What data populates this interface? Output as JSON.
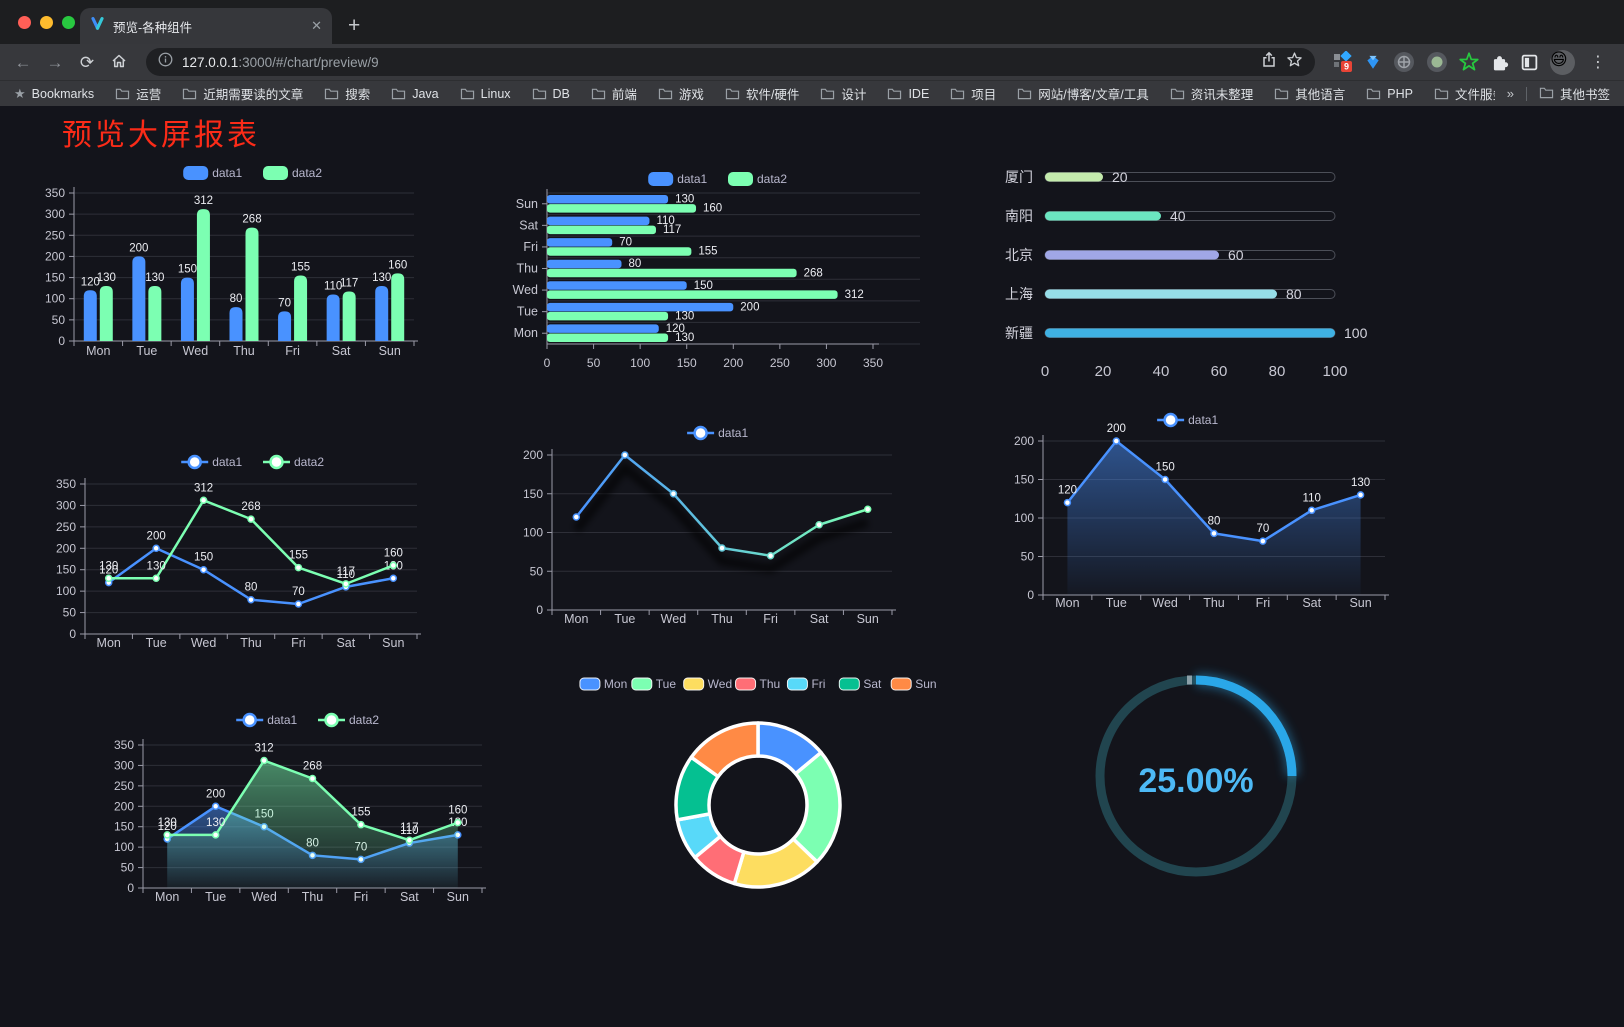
{
  "browser": {
    "tab_title": "预览-各种组件",
    "url_host": "127.0.0.1",
    "url_rest": ":3000/#/chart/preview/9",
    "bookmarks_label": "Bookmarks",
    "bookmarks": [
      "运营",
      "近期需要读的文章",
      "搜索",
      "Java",
      "Linux",
      "DB",
      "前端",
      "游戏",
      "软件/硬件",
      "设计",
      "IDE",
      "项目",
      "网站/博客/文章/工具",
      "资讯未整理",
      "其他语言",
      "PHP",
      "文件服务器"
    ],
    "other_bookmarks": "其他书签",
    "extension_badge": "9",
    "icons": {
      "back": "←",
      "forward": "→",
      "reload": "⟳",
      "newtab": "+",
      "close": "✕",
      "kebab": "⋮",
      "overflow": "»"
    }
  },
  "page": {
    "title": "预览大屏报表",
    "title_color": "#fb2b18"
  },
  "chart_data": [
    {
      "id": "bar-vertical",
      "type": "bar",
      "categories": [
        "Mon",
        "Tue",
        "Wed",
        "Thu",
        "Fri",
        "Sat",
        "Sun"
      ],
      "series": [
        {
          "name": "data1",
          "color": "#4992ff",
          "values": [
            120,
            200,
            150,
            80,
            70,
            110,
            130
          ]
        },
        {
          "name": "data2",
          "color": "#7cffb2",
          "values": [
            130,
            130,
            312,
            268,
            155,
            117,
            160
          ]
        }
      ],
      "ylim": [
        0,
        350
      ],
      "ystep": 50,
      "value_labels": true,
      "legend_position": "top"
    },
    {
      "id": "bar-horizontal",
      "type": "bar-horizontal",
      "categories": [
        "Mon",
        "Tue",
        "Wed",
        "Thu",
        "Fri",
        "Sat",
        "Sun"
      ],
      "series": [
        {
          "name": "data1",
          "color": "#4992ff",
          "values": [
            120,
            200,
            150,
            80,
            70,
            110,
            130
          ]
        },
        {
          "name": "data2",
          "color": "#7cffb2",
          "values": [
            130,
            130,
            312,
            268,
            155,
            117,
            160
          ]
        }
      ],
      "xlim": [
        0,
        350
      ],
      "xstep": 50,
      "value_labels": true,
      "legend_position": "top"
    },
    {
      "id": "city-progress",
      "type": "progress-bars",
      "items": [
        {
          "label": "厦门",
          "value": 20,
          "color": "#c4ebad"
        },
        {
          "label": "南阳",
          "value": 40,
          "color": "#6be6c1"
        },
        {
          "label": "北京",
          "value": 60,
          "color": "#a0a7e6"
        },
        {
          "label": "上海",
          "value": 80,
          "color": "#96dee8"
        },
        {
          "label": "新疆",
          "value": 100,
          "color": "#3fb1e3"
        }
      ],
      "xlim": [
        0,
        100
      ],
      "xticks": [
        0,
        20,
        40,
        60,
        80,
        100
      ]
    },
    {
      "id": "line-two",
      "type": "line",
      "categories": [
        "Mon",
        "Tue",
        "Wed",
        "Thu",
        "Fri",
        "Sat",
        "Sun"
      ],
      "series": [
        {
          "name": "data1",
          "color": "#4992ff",
          "values": [
            120,
            200,
            150,
            80,
            70,
            110,
            130
          ]
        },
        {
          "name": "data2",
          "color": "#7cffb2",
          "values": [
            130,
            130,
            312,
            268,
            155,
            117,
            160
          ]
        }
      ],
      "ylim": [
        0,
        350
      ],
      "ystep": 50,
      "value_labels": true,
      "legend_position": "top"
    },
    {
      "id": "line-gradient",
      "type": "line",
      "categories": [
        "Mon",
        "Tue",
        "Wed",
        "Thu",
        "Fri",
        "Sat",
        "Sun"
      ],
      "series": [
        {
          "name": "data1",
          "gradient": [
            "#4992ff",
            "#7cffb2"
          ],
          "color": "#4992ff",
          "values": [
            120,
            200,
            150,
            80,
            70,
            110,
            130
          ]
        }
      ],
      "ylim": [
        0,
        200
      ],
      "ystep": 50,
      "value_labels": false,
      "shadow": true,
      "legend_position": "top"
    },
    {
      "id": "area-single",
      "type": "area",
      "categories": [
        "Mon",
        "Tue",
        "Wed",
        "Thu",
        "Fri",
        "Sat",
        "Sun"
      ],
      "series": [
        {
          "name": "data1",
          "color": "#4992ff",
          "values": [
            120,
            200,
            150,
            80,
            70,
            110,
            130
          ]
        }
      ],
      "ylim": [
        0,
        200
      ],
      "ystep": 50,
      "value_labels": true,
      "legend_position": "top"
    },
    {
      "id": "area-two",
      "type": "area",
      "categories": [
        "Mon",
        "Tue",
        "Wed",
        "Thu",
        "Fri",
        "Sat",
        "Sun"
      ],
      "series": [
        {
          "name": "data1",
          "color": "#4992ff",
          "values": [
            120,
            200,
            150,
            80,
            70,
            110,
            130
          ]
        },
        {
          "name": "data2",
          "color": "#7cffb2",
          "values": [
            130,
            130,
            312,
            268,
            155,
            117,
            160
          ]
        }
      ],
      "ylim": [
        0,
        350
      ],
      "ystep": 50,
      "value_labels": true,
      "legend_position": "top"
    },
    {
      "id": "donut",
      "type": "pie",
      "slices": [
        {
          "name": "Mon",
          "value": 120,
          "color": "#4992ff"
        },
        {
          "name": "Tue",
          "value": 200,
          "color": "#7cffb2"
        },
        {
          "name": "Wed",
          "value": 150,
          "color": "#fddd60"
        },
        {
          "name": "Thu",
          "value": 80,
          "color": "#ff6e76"
        },
        {
          "name": "Fri",
          "value": 70,
          "color": "#58d9f9"
        },
        {
          "name": "Sat",
          "value": 110,
          "color": "#05c091"
        },
        {
          "name": "Sun",
          "value": 130,
          "color": "#ff8a45"
        }
      ],
      "legend_position": "top",
      "inner_radius_ratio": 0.6
    },
    {
      "id": "progress-ring",
      "type": "ring",
      "percent": 25,
      "label": "25.00%",
      "color": "#2aa7e8",
      "track_color": "#21454f",
      "text_color": "#4db9f5"
    }
  ]
}
